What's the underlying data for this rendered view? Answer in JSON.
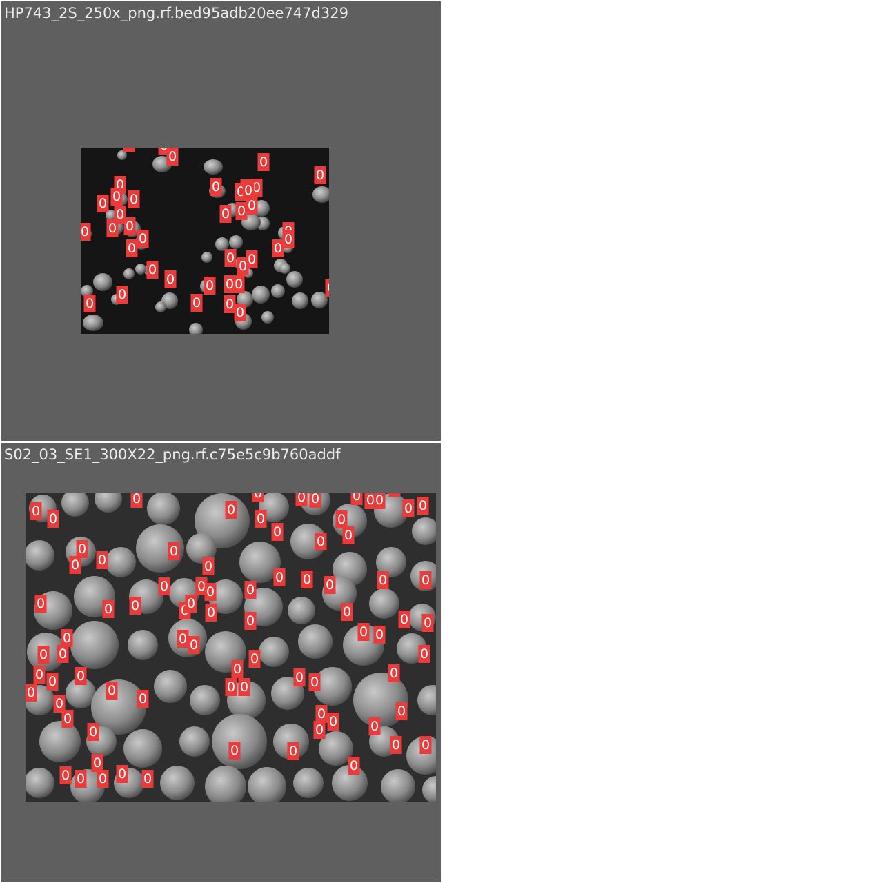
{
  "tiles": [
    {
      "title": "HP743_2S_250x_png.rf.bed95adb20ee747d329",
      "tag_label": "0"
    },
    {
      "title": "S02_03_SE1_300X22_png.rf.c75e5c9b760addf",
      "tag_label": "0"
    }
  ],
  "colors": {
    "panel_background": "#5f5f5f",
    "tag_fill": "#ea3a3a",
    "tag_text": "#ffffff",
    "title_text": "#ececec"
  }
}
